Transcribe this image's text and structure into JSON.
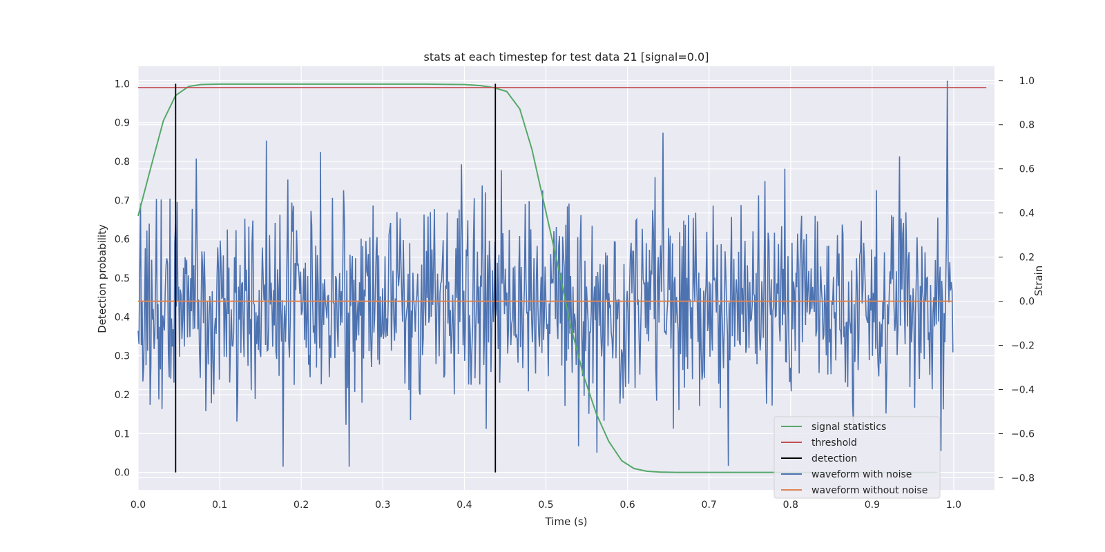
{
  "chart_data": {
    "type": "line",
    "title": "stats at each timestep for test data 21 [signal=0.0]",
    "xlabel": "Time (s)",
    "ylabel_left": "Detection probability",
    "ylabel_right": "Strain",
    "xlim": [
      0.0,
      1.05
    ],
    "ylim_left": [
      -0.045,
      1.045
    ],
    "ylim_right": [
      -0.855,
      1.065
    ],
    "x_ticks": [
      "0.0",
      "0.1",
      "0.2",
      "0.3",
      "0.4",
      "0.5",
      "0.6",
      "0.7",
      "0.8",
      "0.9",
      "1.0"
    ],
    "y_left_ticks": [
      "0.0",
      "0.1",
      "0.2",
      "0.3",
      "0.4",
      "0.5",
      "0.6",
      "0.7",
      "0.8",
      "0.9",
      "1.0"
    ],
    "y_right_ticks": [
      "−0.8",
      "−0.6",
      "−0.4",
      "−0.2",
      "0.0",
      "0.2",
      "0.4",
      "0.6",
      "0.8",
      "1.0"
    ],
    "grid": true,
    "legend_position": "lower-right",
    "colors": {
      "background": "#eaeaf2",
      "grid": "#ffffff",
      "signal_statistics": "#55a868",
      "threshold": "#c44e52",
      "detection": "#000000",
      "waveform_noise": "#4c72b0",
      "waveform_clean": "#dd8452"
    },
    "series": [
      {
        "name": "signal statistics",
        "axis": "left",
        "x": [
          0.0,
          0.015,
          0.031,
          0.046,
          0.062,
          0.077,
          0.1,
          0.15,
          0.2,
          0.25,
          0.3,
          0.35,
          0.4,
          0.42,
          0.436,
          0.452,
          0.468,
          0.483,
          0.499,
          0.515,
          0.53,
          0.546,
          0.562,
          0.577,
          0.593,
          0.608,
          0.624,
          0.64,
          0.66,
          0.7,
          0.8,
          0.9,
          0.98
        ],
        "values": [
          0.66,
          0.78,
          0.905,
          0.97,
          0.993,
          0.998,
          0.999,
          0.999,
          0.999,
          0.999,
          0.999,
          0.999,
          0.998,
          0.995,
          0.99,
          0.98,
          0.935,
          0.83,
          0.68,
          0.53,
          0.38,
          0.25,
          0.15,
          0.08,
          0.03,
          0.01,
          0.003,
          0.001,
          0.0,
          0.0,
          0.0,
          0.0,
          0.0
        ]
      },
      {
        "name": "threshold",
        "axis": "left",
        "x": [
          0.0,
          1.04
        ],
        "values": [
          0.99,
          0.99
        ]
      },
      {
        "name": "detection",
        "axis": "left",
        "segments": [
          {
            "x": 0.046,
            "y": [
              0.0,
              1.0
            ]
          },
          {
            "x": 0.438,
            "y": [
              0.0,
              1.0
            ]
          }
        ]
      },
      {
        "name": "waveform with noise",
        "axis": "right",
        "samples": 1024,
        "x_range": [
          0.0,
          0.999
        ],
        "y_range_observed": [
          -0.75,
          1.0
        ],
        "seed": 21
      },
      {
        "name": "waveform without noise",
        "axis": "right",
        "x": [
          0.0,
          0.999
        ],
        "values": [
          0.0,
          0.0
        ]
      }
    ]
  }
}
